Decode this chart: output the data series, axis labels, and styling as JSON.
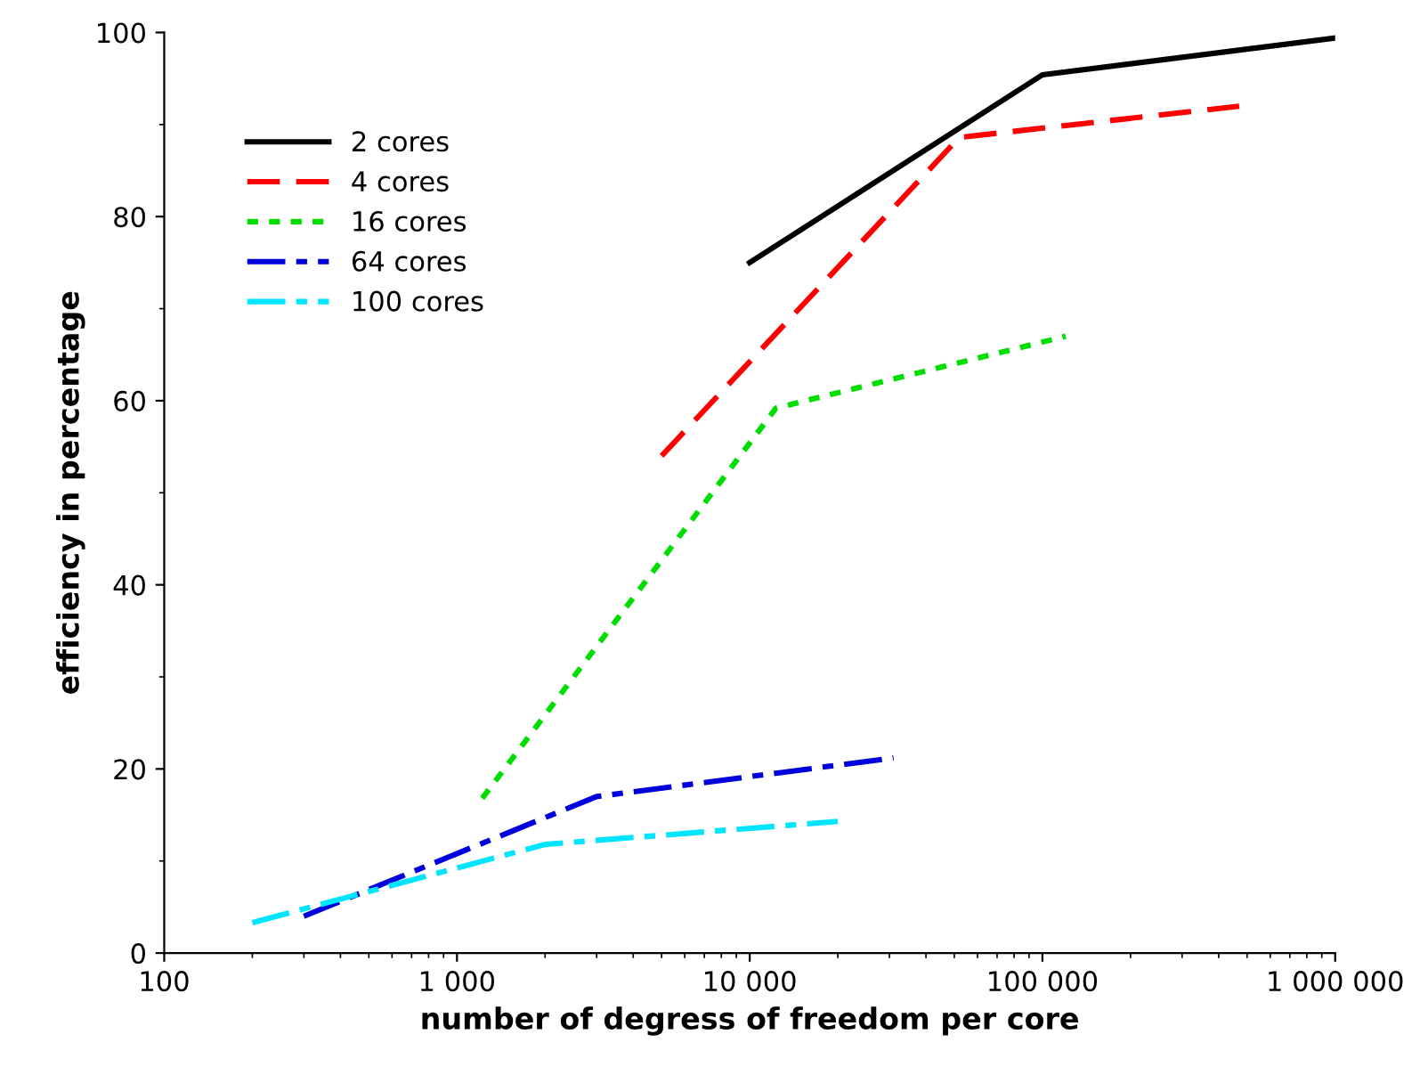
{
  "chart_data": {
    "type": "line",
    "xlabel": "number of degress of freedom per core",
    "ylabel": "efficiency in percentage",
    "log": "x",
    "xlim": [
      100,
      1000000
    ],
    "xticks": [
      {
        "value": 100,
        "label": "100"
      },
      {
        "value": 1000,
        "label": "1 000"
      },
      {
        "value": 10000,
        "label": "10 000"
      },
      {
        "value": 100000,
        "label": "100 000"
      },
      {
        "value": 1000000,
        "label": "1 000 000"
      }
    ],
    "ylim": [
      0,
      100
    ],
    "yticks": [
      0,
      20,
      40,
      60,
      80,
      100
    ],
    "grid": false,
    "legend": "top left",
    "marker": "none",
    "series": [
      {
        "name": "2 cores",
        "color": "#000000",
        "line_style": "solid",
        "x": [
          10000,
          100000,
          1000000
        ],
        "values": [
          75,
          95.4,
          99.4
        ]
      },
      {
        "name": "4 cores",
        "color": "#ff0000",
        "line_style": "dashed",
        "x": [
          5000,
          52000,
          470000
        ],
        "values": [
          54,
          88.6,
          92
        ]
      },
      {
        "name": "16 cores",
        "color": "#00dd00",
        "line_style": "dotted",
        "x": [
          1220,
          12300,
          120000
        ],
        "values": [
          16.8,
          59.2,
          67
        ]
      },
      {
        "name": "64 cores",
        "color": "#0000dd",
        "line_style": "dashdot",
        "x": [
          300,
          3000,
          31000
        ],
        "values": [
          4,
          17,
          21.2
        ]
      },
      {
        "name": "100 cores",
        "color": "#00e5ff",
        "line_style": "dashdot",
        "x": [
          200,
          2000,
          20000
        ],
        "values": [
          3.3,
          11.8,
          14.3
        ]
      }
    ]
  }
}
